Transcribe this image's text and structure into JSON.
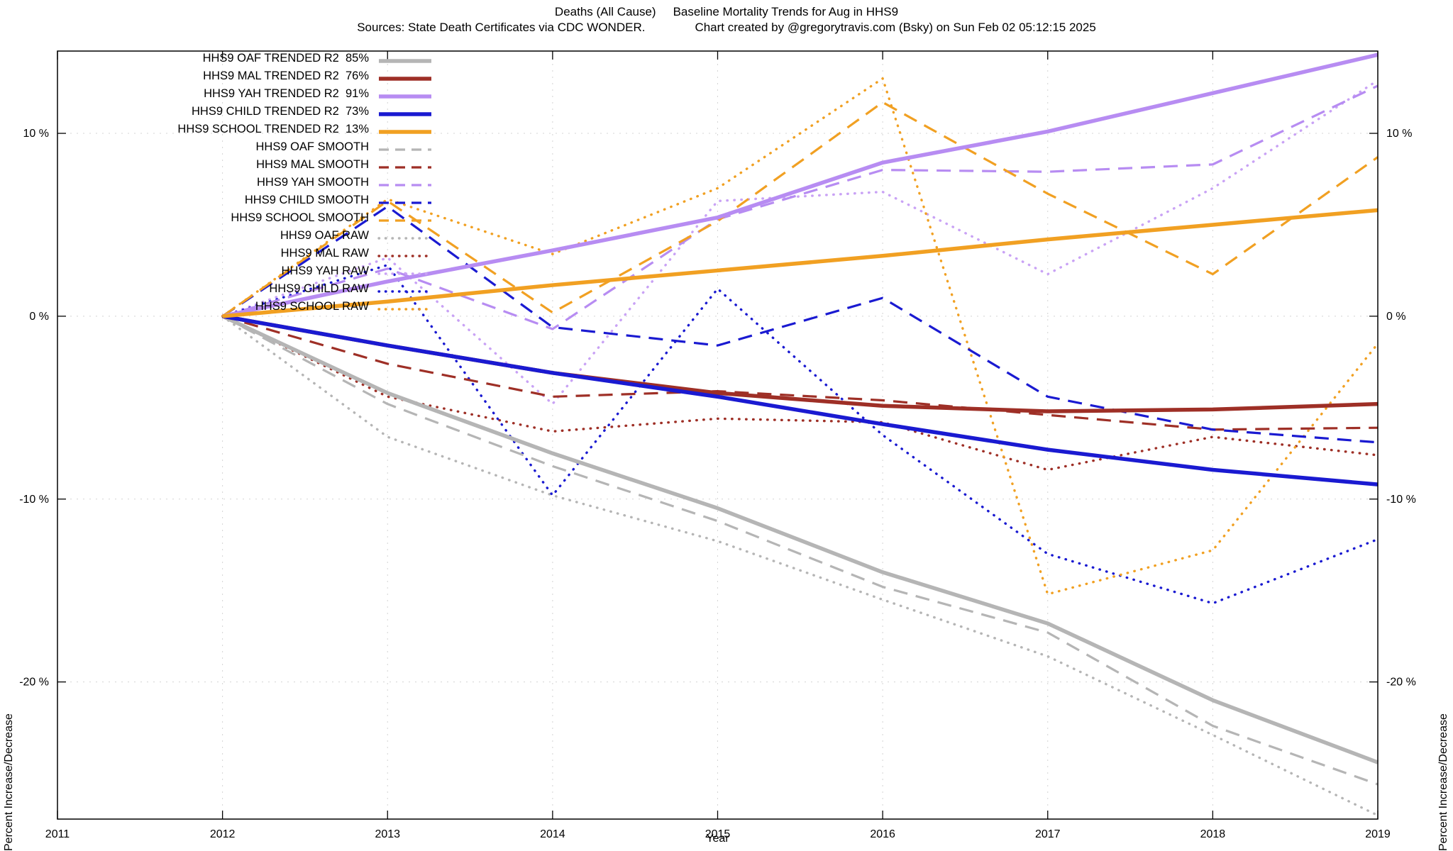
{
  "page": {
    "title_left": "Deaths (All Cause)",
    "title_right": "Baseline Mortality Trends for Aug in HHS9",
    "subtitle_left": "Sources: State Death Certificates via CDC WONDER.",
    "subtitle_right": "Chart created by @gregorytravis.com (Bsky) on Sun Feb 02 05:12:15 2025"
  },
  "chart_data": {
    "type": "line",
    "title": "Deaths (All Cause)  Baseline Mortality Trends for Aug in HHS9",
    "subtitle": "Sources: State Death Certificates via CDC WONDER.  Chart created by @gregorytravis.com (Bsky) on Sun Feb 02 05:12:15 2025",
    "xlabel": "Year",
    "ylabel_left": "Percent Increase/Decrease",
    "ylabel_right": "Percent Increase/Decrease",
    "xlim": [
      2011,
      2019
    ],
    "ylim": [
      -27.5,
      14.5
    ],
    "grid": true,
    "legend_position": "top-left",
    "x_ticks": [
      2011,
      2012,
      2013,
      2014,
      2015,
      2016,
      2017,
      2018,
      2019
    ],
    "y_ticks": [
      {
        "value": 10,
        "label": "10 %"
      },
      {
        "value": 0,
        "label": "0 %"
      },
      {
        "value": -10,
        "label": "-10 %"
      },
      {
        "value": -20,
        "label": "-20 %"
      }
    ],
    "x": [
      2012,
      2013,
      2014,
      2015,
      2016,
      2017,
      2018,
      2019
    ],
    "series": [
      {
        "name": "HHS9 OAF TRENDED R2  85%",
        "color": "#b5b5b5",
        "style": "solid",
        "values": [
          0,
          -4.2,
          -7.5,
          -10.5,
          -14.0,
          -16.8,
          -21.0,
          -24.4
        ]
      },
      {
        "name": "HHS9 MAL TRENDED R2  76%",
        "color": "#9e2f26",
        "style": "solid",
        "values": [
          0,
          -1.6,
          -3.1,
          -4.2,
          -4.9,
          -5.2,
          -5.1,
          -4.8
        ]
      },
      {
        "name": "HHS9 YAH TRENDED R2  91%",
        "color": "#b78cf2",
        "style": "solid",
        "values": [
          0,
          1.9,
          3.6,
          5.4,
          8.4,
          10.1,
          12.2,
          14.3
        ]
      },
      {
        "name": "HHS9 CHILD TRENDED R2  73%",
        "color": "#1a1ad1",
        "style": "solid",
        "values": [
          0,
          -1.6,
          -3.1,
          -4.4,
          -5.9,
          -7.3,
          -8.4,
          -9.2
        ]
      },
      {
        "name": "HHS9 SCHOOL TRENDED R2  13%",
        "color": "#f1a022",
        "style": "solid",
        "values": [
          0,
          0.8,
          1.7,
          2.5,
          3.3,
          4.2,
          5.0,
          5.8
        ]
      },
      {
        "name": "HHS9 OAF SMOOTH",
        "color": "#b5b5b5",
        "style": "dashed",
        "values": [
          0,
          -4.8,
          -8.2,
          -11.2,
          -14.8,
          -17.3,
          -22.4,
          -25.6
        ]
      },
      {
        "name": "HHS9 MAL SMOOTH",
        "color": "#9e2f26",
        "style": "dashed",
        "values": [
          0,
          -2.6,
          -4.4,
          -4.1,
          -4.6,
          -5.4,
          -6.2,
          -6.1
        ]
      },
      {
        "name": "HHS9 YAH SMOOTH",
        "color": "#b78cf2",
        "style": "dashed",
        "values": [
          0,
          2.6,
          -0.7,
          5.3,
          8.0,
          7.9,
          8.3,
          12.6
        ]
      },
      {
        "name": "HHS9 CHILD SMOOTH",
        "color": "#1a1ad1",
        "style": "dashed",
        "values": [
          0,
          6.0,
          -0.6,
          -1.6,
          1.0,
          -4.4,
          -6.2,
          -6.9
        ]
      },
      {
        "name": "HHS9 SCHOOL SMOOTH",
        "color": "#f1a022",
        "style": "dashed",
        "values": [
          0,
          6.3,
          0.2,
          5.2,
          11.7,
          6.7,
          2.3,
          8.7
        ]
      },
      {
        "name": "HHS9 OAF RAW",
        "color": "#b5b5b5",
        "style": "dotted",
        "values": [
          0,
          -6.6,
          -9.8,
          -12.3,
          -15.5,
          -18.6,
          -22.9,
          -27.3
        ]
      },
      {
        "name": "HHS9 MAL RAW",
        "color": "#9e2f26",
        "style": "dotted",
        "values": [
          0,
          -4.4,
          -6.3,
          -5.6,
          -5.8,
          -8.4,
          -6.6,
          -7.6
        ]
      },
      {
        "name": "HHS9 YAH RAW",
        "color": "#c9a2f5",
        "style": "dotted",
        "values": [
          0,
          3.2,
          -4.8,
          6.3,
          6.8,
          2.3,
          7.0,
          12.9
        ]
      },
      {
        "name": "HHS9 CHILD RAW",
        "color": "#1a1ad1",
        "style": "dotted",
        "values": [
          0,
          2.8,
          -9.8,
          1.5,
          -6.5,
          -13.0,
          -15.7,
          -12.2
        ]
      },
      {
        "name": "HHS9 SCHOOL RAW",
        "color": "#f1a022",
        "style": "dotted",
        "values": [
          0,
          6.4,
          3.4,
          7.0,
          13.0,
          -15.2,
          -12.8,
          -1.5
        ]
      }
    ],
    "colors": {
      "oaf": "#b5b5b5",
      "mal": "#9e2f26",
      "yah": "#b78cf2",
      "child": "#1a1ad1",
      "school": "#f1a022",
      "grid": "#d4d4d4",
      "axis": "#000000"
    }
  }
}
